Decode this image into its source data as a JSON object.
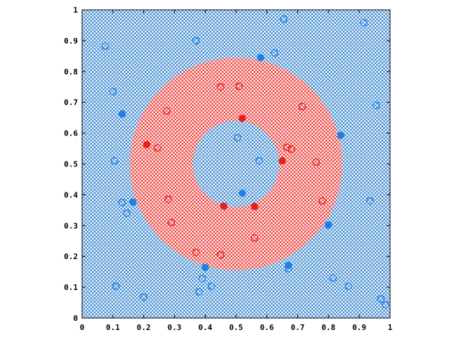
{
  "chart_data": {
    "type": "scatter",
    "title": "",
    "xlabel": "",
    "ylabel": "",
    "xlim": [
      0,
      1
    ],
    "ylim": [
      0,
      1
    ],
    "xticks": [
      "0",
      "0.1",
      "0.2",
      "0.3",
      "0.4",
      "0.5",
      "0.6",
      "0.7",
      "0.8",
      "0.9",
      "1"
    ],
    "yticks": [
      "0",
      "0.1",
      "0.2",
      "0.3",
      "0.4",
      "0.5",
      "0.6",
      "0.7",
      "0.8",
      "0.9",
      "1"
    ],
    "grid": false,
    "background_region": {
      "class": "blue",
      "color": "#1f77c8"
    },
    "annulus_region": {
      "class": "red",
      "color": "#e8201c",
      "center": [
        0.5,
        0.5
      ],
      "inner_radius": 0.14,
      "outer_radius": 0.345
    },
    "series": [
      {
        "name": "",
        "class": "blue",
        "filled": true,
        "color": "#1f7fe8",
        "points": [
          [
            0.58,
            0.845
          ],
          [
            0.13,
            0.662
          ],
          [
            0.84,
            0.593
          ],
          [
            0.165,
            0.376
          ],
          [
            0.52,
            0.405
          ],
          [
            0.8,
            0.302
          ],
          [
            0.4,
            0.164
          ],
          [
            0.67,
            0.171
          ]
        ]
      },
      {
        "name": "",
        "class": "blue",
        "filled": false,
        "color": "#1f7fe8",
        "points": [
          [
            0.655,
            0.97
          ],
          [
            0.915,
            0.958
          ],
          [
            0.37,
            0.9
          ],
          [
            0.075,
            0.882
          ],
          [
            0.625,
            0.86
          ],
          [
            0.1,
            0.735
          ],
          [
            0.955,
            0.69
          ],
          [
            0.505,
            0.585
          ],
          [
            0.105,
            0.51
          ],
          [
            0.575,
            0.51
          ],
          [
            0.13,
            0.375
          ],
          [
            0.145,
            0.34
          ],
          [
            0.935,
            0.38
          ],
          [
            0.39,
            0.128
          ],
          [
            0.42,
            0.103
          ],
          [
            0.38,
            0.085
          ],
          [
            0.815,
            0.13
          ],
          [
            0.865,
            0.103
          ],
          [
            0.11,
            0.103
          ],
          [
            0.2,
            0.068
          ],
          [
            0.97,
            0.062
          ],
          [
            0.985,
            0.043
          ],
          [
            0.67,
            0.16
          ]
        ]
      },
      {
        "name": "",
        "class": "red",
        "filled": true,
        "color": "#e8201c",
        "points": [
          [
            0.52,
            0.648
          ],
          [
            0.21,
            0.563
          ],
          [
            0.65,
            0.51
          ],
          [
            0.46,
            0.363
          ],
          [
            0.56,
            0.362
          ]
        ]
      },
      {
        "name": "",
        "class": "red",
        "filled": false,
        "color": "#e8201c",
        "points": [
          [
            0.45,
            0.75
          ],
          [
            0.51,
            0.752
          ],
          [
            0.275,
            0.672
          ],
          [
            0.715,
            0.686
          ],
          [
            0.245,
            0.552
          ],
          [
            0.665,
            0.554
          ],
          [
            0.68,
            0.548
          ],
          [
            0.76,
            0.506
          ],
          [
            0.28,
            0.385
          ],
          [
            0.78,
            0.38
          ],
          [
            0.29,
            0.31
          ],
          [
            0.37,
            0.213
          ],
          [
            0.45,
            0.205
          ],
          [
            0.56,
            0.26
          ]
        ]
      }
    ]
  }
}
